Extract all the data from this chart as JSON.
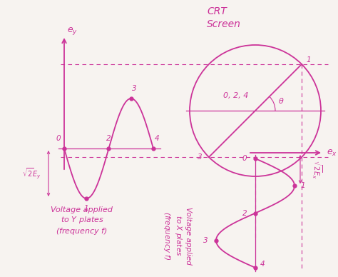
{
  "bg_color": "#f7f3f0",
  "pink": "#cc3399",
  "title_crt": "CRT",
  "title_screen": "Screen",
  "label_ey": "$e_y$",
  "label_ex": "$e_x$",
  "label_sqrt2Ey": "$\\sqrt{2}E_y$",
  "label_sqrt2Ex": "$\\sqrt{2}E_x$",
  "label_theta": "$\\theta$",
  "label_024": "0, 2, 4",
  "y_label_text": "Voltage applied\nto $Y$ plates\n(frequency $f$)",
  "x_label_text": "Voltage applied\nto $X$ plates\n(frequency $f$)"
}
